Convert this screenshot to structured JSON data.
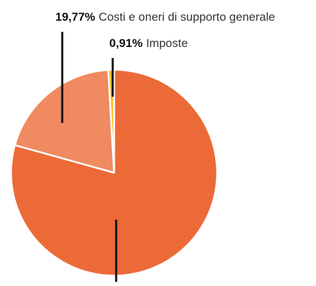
{
  "chart_data": {
    "type": "pie",
    "slices": [
      {
        "label": "",
        "value_text": "",
        "value": 79.32,
        "color": "#ec6a38"
      },
      {
        "label": "Costi e oneri di supporto generale",
        "value_text": "19,77%",
        "value": 19.77,
        "color": "#f08a60"
      },
      {
        "label": "Imposte",
        "value_text": "0,91%",
        "value": 0.91,
        "color": "#f5c22f"
      }
    ],
    "stroke_color": "#ffffff",
    "leader_color": "#111111"
  }
}
